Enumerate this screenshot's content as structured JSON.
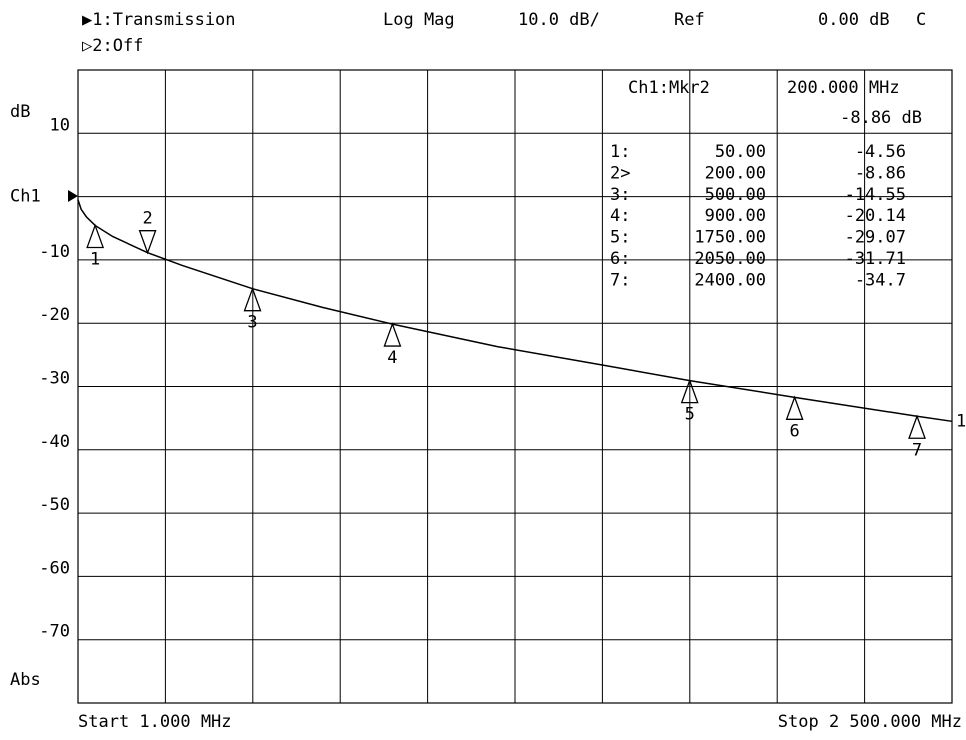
{
  "chart_data": {
    "type": "line",
    "header": {
      "channel1": "▶1:Transmission",
      "format": "Log Mag",
      "scale": "10.0 dB/",
      "ref_title": "Ref",
      "ref_value": "0.00 dB",
      "flag": "C",
      "channel2": "▷2:Off"
    },
    "y_unit": "dB",
    "y_bottom_label": "Abs",
    "start_label": "Start 1.000 MHz",
    "stop_label": "Stop 2 500.000 MHz",
    "xlim": [
      1,
      2500
    ],
    "xticks": [
      250.9,
      500.8,
      750.7,
      1000.6,
      1250.5,
      1500.4,
      1750.3,
      2000.2,
      2250.1
    ],
    "ylim": [
      -80,
      20
    ],
    "yticks": [
      10,
      {
        "value": 0,
        "label": "Ch1"
      },
      -10,
      -20,
      -30,
      -40,
      -50,
      -60,
      -70
    ],
    "grid": true,
    "series": [
      {
        "name": "1",
        "color": "#000000",
        "x": [
          1,
          10,
          25,
          50,
          100,
          200,
          300,
          500,
          700,
          900,
          1200,
          1500,
          1750,
          2050,
          2400,
          2500
        ],
        "values": [
          -0.5,
          -2,
          -3.2,
          -4.56,
          -6.3,
          -8.86,
          -10.9,
          -14.55,
          -17.5,
          -20.14,
          -23.7,
          -26.6,
          -29.07,
          -31.71,
          -34.7,
          -35.5
        ]
      }
    ],
    "active_marker": {
      "title": "Ch1:Mkr2",
      "x_label": "200.000 MHz",
      "value_label": "-8.86 dB"
    },
    "markers": {
      "names": [
        "1",
        "2",
        "3",
        "4",
        "5",
        "6",
        "7"
      ],
      "prefixes": [
        "1:",
        "2>",
        "3:",
        "4:",
        "5:",
        "6:",
        "7:"
      ],
      "x": [
        50,
        200,
        500,
        900,
        1750,
        2050,
        2400
      ],
      "x_labels": [
        "50.00",
        "200.00",
        "500.00",
        "900.00",
        "1750.00",
        "2050.00",
        "2400.00"
      ],
      "values": [
        -4.56,
        -8.86,
        -14.55,
        -20.14,
        -29.07,
        -31.71,
        -34.7
      ],
      "active": 1
    }
  }
}
